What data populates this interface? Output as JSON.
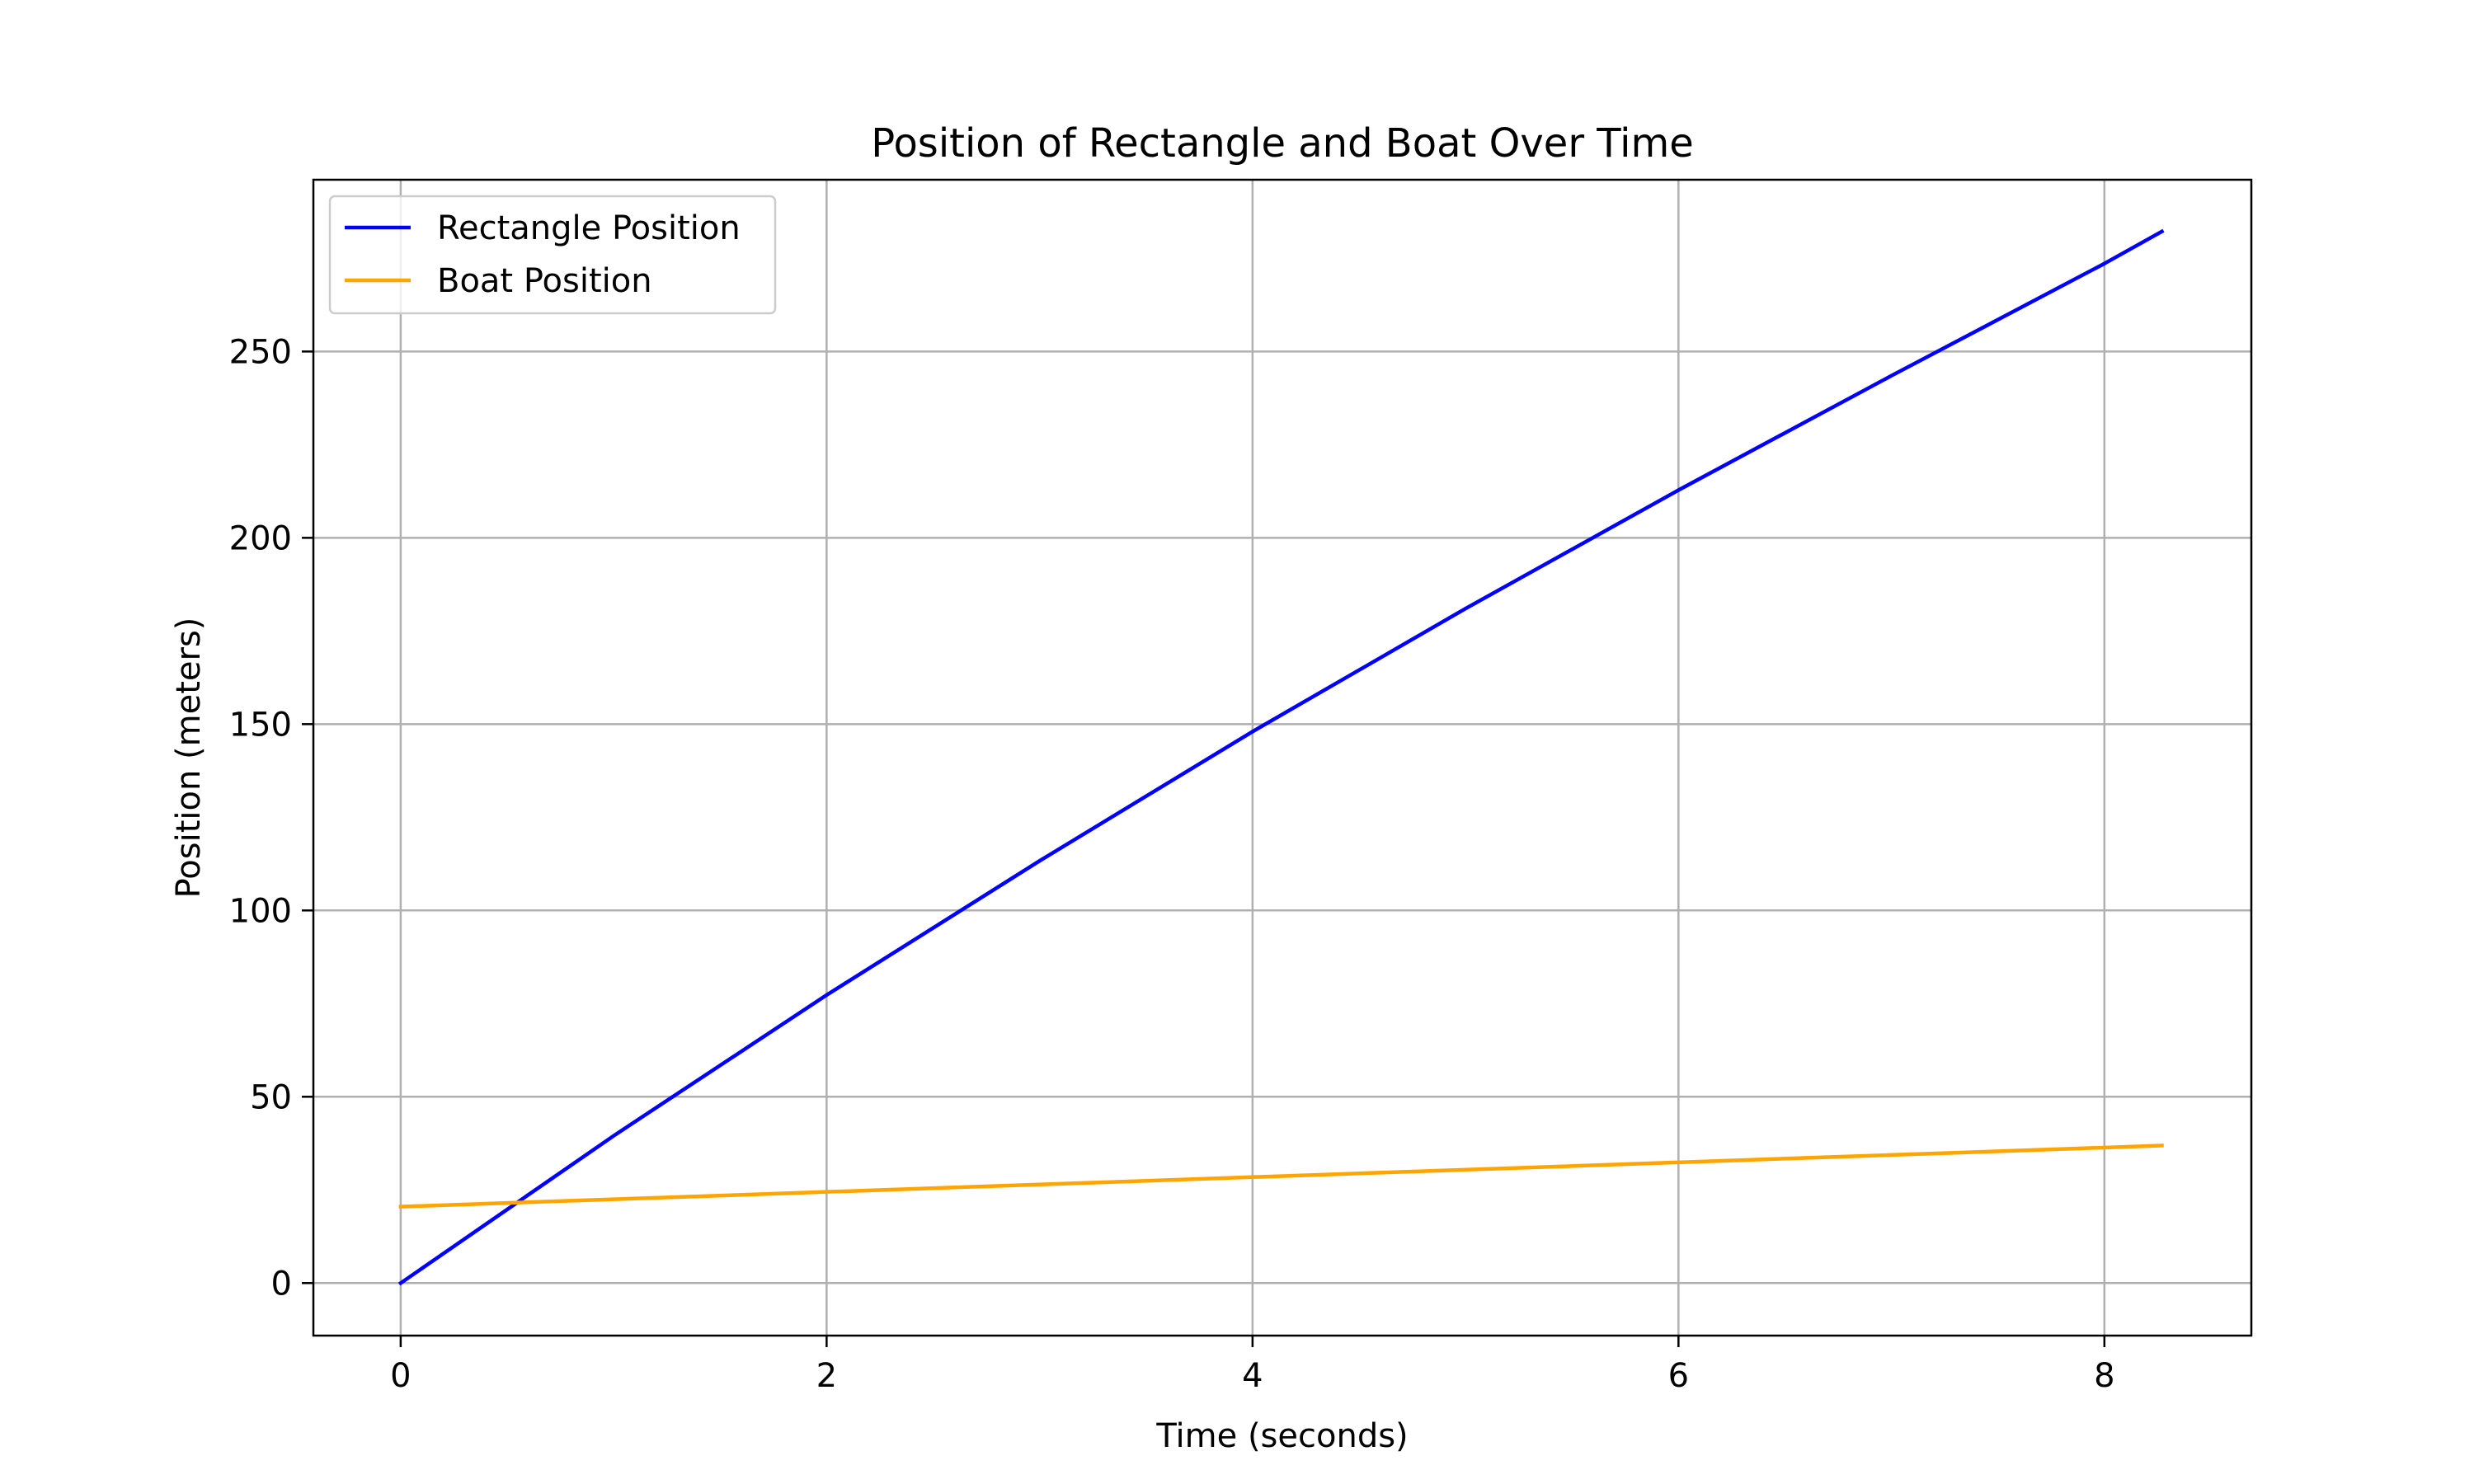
{
  "chart_data": {
    "type": "line",
    "title": "Position of Rectangle and Boat Over Time",
    "xlabel": "Time (seconds)",
    "ylabel": "Position (meters)",
    "xlim": [
      -0.41,
      8.69
    ],
    "ylim": [
      -14.1,
      296.1
    ],
    "xticks": [
      0,
      2,
      4,
      6,
      8
    ],
    "yticks": [
      0,
      50,
      100,
      150,
      200,
      250
    ],
    "grid": true,
    "legend_position": "top-left",
    "series": [
      {
        "name": "Rectangle Position",
        "color": "#0000ff",
        "x": [
          0,
          1,
          2,
          3,
          4,
          5,
          6,
          7,
          8,
          8.27
        ],
        "y": [
          0,
          39.5,
          77.3,
          113.3,
          148.0,
          181.0,
          212.8,
          243.5,
          273.6,
          282.2
        ]
      },
      {
        "name": "Boat Position",
        "color": "#ffa500",
        "x": [
          0,
          8.27
        ],
        "y": [
          20.5,
          36.9
        ]
      }
    ]
  }
}
